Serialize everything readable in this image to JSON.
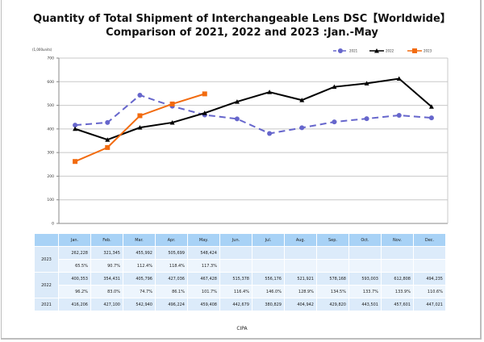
{
  "title_line1": "Quantity of Total Shipment of Interchangeable Lens DSC【Worldwide】",
  "title_line2": "Comparison of 2021, 2022 and 2023 :Jan.-May",
  "unit_label": "(1,000units)",
  "footer": "CIPA",
  "chart_data": {
    "type": "line",
    "title": "Quantity of Total Shipment of Interchangeable Lens DSC【Worldwide】 Comparison of 2021, 2022 and 2023 :Jan.-May",
    "xlabel": "",
    "ylabel": "(1,000units)",
    "ylim": [
      0,
      700
    ],
    "yticks": [
      0,
      100,
      200,
      300,
      400,
      500,
      600,
      700
    ],
    "grid": true,
    "legend_position": "top-right",
    "categories": [
      "Jan.",
      "Feb.",
      "Mar.",
      "Apr.",
      "May.",
      "Jun.",
      "Jul.",
      "Aug.",
      "Sep.",
      "Oct.",
      "Nov.",
      "Dec."
    ],
    "series": [
      {
        "name": "2021",
        "color": "#6666cc",
        "style": "dashed",
        "marker": "circle",
        "values": [
          416.206,
          427.1,
          542.94,
          496.224,
          459.408,
          442.679,
          380.829,
          404.942,
          429.82,
          443.501,
          457.601,
          447.021
        ]
      },
      {
        "name": "2022",
        "color": "#000000",
        "style": "solid",
        "marker": "triangle",
        "values": [
          400.353,
          354.431,
          405.796,
          427.036,
          467.428,
          515.378,
          556.176,
          521.921,
          578.168,
          593.003,
          612.808,
          494.235
        ]
      },
      {
        "name": "2023",
        "color": "#f26b0f",
        "style": "solid",
        "marker": "square",
        "values": [
          262.228,
          321.345,
          455.992,
          505.699,
          548.424
        ]
      }
    ]
  },
  "table": {
    "header": [
      "Jan.",
      "Feb.",
      "Mar.",
      "Apr.",
      "May.",
      "Jun.",
      "Jul.",
      "Aug.",
      "Sep.",
      "Oct.",
      "Nov.",
      "Dec."
    ],
    "rows": [
      {
        "year": "2023",
        "units": [
          "262,228",
          "321,345",
          "455,992",
          "505,699",
          "548,424",
          "",
          "",
          "",
          "",
          "",
          "",
          ""
        ],
        "ratio": [
          "65.5%",
          "90.7%",
          "112.4%",
          "118.4%",
          "117.3%",
          "",
          "",
          "",
          "",
          "",
          "",
          ""
        ]
      },
      {
        "year": "2022",
        "units": [
          "400,353",
          "354,431",
          "405,796",
          "427,036",
          "467,428",
          "515,378",
          "556,176",
          "521,921",
          "578,168",
          "593,003",
          "612,808",
          "494,235"
        ],
        "ratio": [
          "96.2%",
          "83.0%",
          "74.7%",
          "86.1%",
          "101.7%",
          "116.4%",
          "146.0%",
          "128.9%",
          "134.5%",
          "133.7%",
          "133.9%",
          "110.6%"
        ]
      },
      {
        "year": "2021",
        "units": [
          "416,206",
          "427,100",
          "542,940",
          "496,224",
          "459,408",
          "442,679",
          "380,829",
          "404,942",
          "429,820",
          "443,501",
          "457,601",
          "447,021"
        ]
      }
    ]
  }
}
